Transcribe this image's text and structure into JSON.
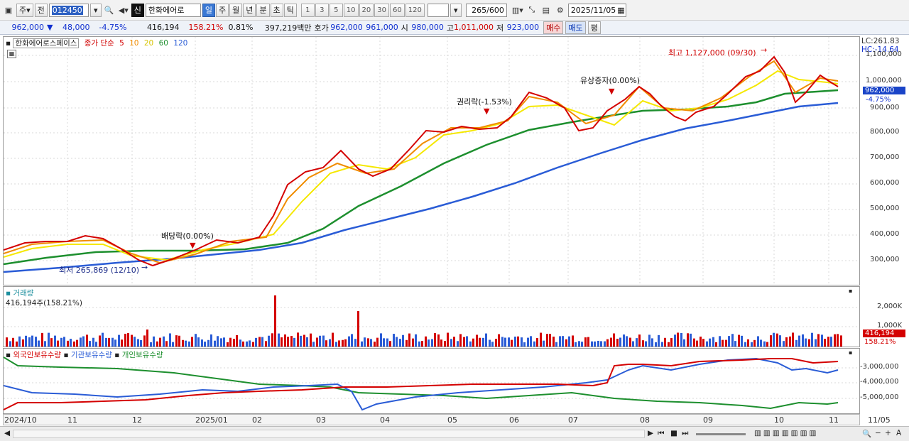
{
  "toolbar": {
    "period_toggle": "주",
    "prev_label": "전",
    "code": "012450",
    "new_badge": "신",
    "stock_name": "한화에어로",
    "intervals": [
      "일",
      "주",
      "월",
      "년",
      "분",
      "초",
      "틱"
    ],
    "active_interval": "일",
    "multipliers": [
      "1",
      "3",
      "5",
      "10",
      "20",
      "30",
      "60",
      "120"
    ],
    "count": "265",
    "count_total": "/600",
    "date": "2025/11/05"
  },
  "quote": {
    "price": "962,000",
    "change_arrow": "▼",
    "change": "48,000",
    "change_pct": "-4.75%",
    "volume": "416,194",
    "volume_ratio": "158.21%",
    "turnover": "0.81%",
    "amount": "397,219백만",
    "hoga_label": "호가",
    "ask": "962,000",
    "bid": "961,000",
    "open_label": "시",
    "open": "980,000",
    "high_label": "고",
    "high": "1,011,000",
    "low_label": "저",
    "low": "923,000",
    "buy_label": "매수",
    "sell_label": "매도",
    "eval_label": "평"
  },
  "price_panel": {
    "name": "한화에어로스페이스",
    "indicator": "종가 단순",
    "ma": [
      "5",
      "10",
      "20",
      "60",
      "120"
    ],
    "ma_colors": [
      "#d40000",
      "#f08c00",
      "#f5e800",
      "#1d8f2e",
      "#2a5cd6"
    ],
    "lc": "LC:261.83",
    "hc": "HC:-14.64",
    "current_tag": "962,000",
    "current_pct": "-4.75%",
    "annotations": {
      "high": "최고 1,127,000 (09/30)",
      "low": "최저 265,869 (12/10)",
      "dividend": "배당락(0.00%)",
      "rights": "권리락(-1.53%)",
      "capital": "유상증자(0.00%)"
    },
    "yticks": [
      "1,100,000",
      "1,000,000",
      "900,000",
      "800,000",
      "700,000",
      "600,000",
      "500,000",
      "400,000",
      "300,000"
    ]
  },
  "volume_panel": {
    "title": "거래량",
    "value": "416,194주(158.21%)",
    "tag": "416,194",
    "tag_pct": "158.21%",
    "yticks": [
      "2,000K",
      "1,000K"
    ]
  },
  "holdings_panel": {
    "legend": [
      "외국인보유수량",
      "기관보유수량",
      "개인보유수량"
    ],
    "colors": [
      "#d40000",
      "#2a5cd6",
      "#1d8f2e"
    ],
    "yticks": [
      "-3,000,000",
      "-4,000,000",
      "-5,000,000"
    ]
  },
  "xaxis": {
    "labels": [
      "2024/10",
      "11",
      "12",
      "2025/01",
      "02",
      "03",
      "04",
      "05",
      "06",
      "07",
      "08",
      "09",
      "10",
      "11"
    ],
    "end_label": "11/05"
  }
}
